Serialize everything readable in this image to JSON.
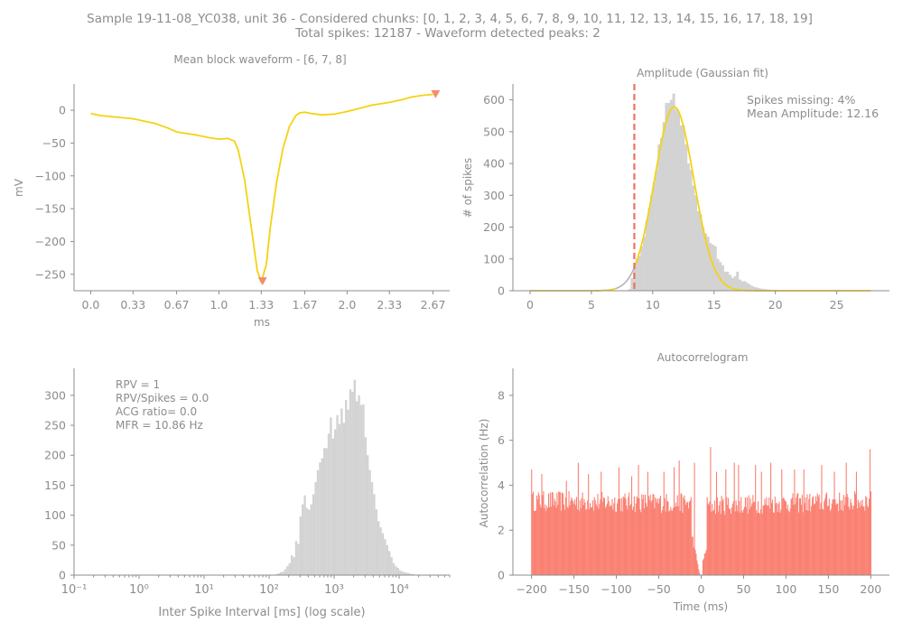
{
  "header": {
    "line1": "Sample 19-11-08_YC038, unit 36 - Considered chunks: [0, 1, 2, 3, 4, 5, 6, 7, 8, 9, 10, 11, 12, 13, 14, 15, 16, 17, 18, 19]",
    "line2": "Total spikes: 12187 - Waveform detected peaks: 2"
  },
  "colors": {
    "text": "#8c8c8c",
    "axis": "#8c8c8c",
    "waveform": "#f5d214",
    "peak_marker": "#f28e6b",
    "histogram": "#d3d3d3",
    "gauss_fit": "#f5d214",
    "gauss_tail": "#b4b4b4",
    "threshold": "#f07060",
    "acg": "#fa8072"
  },
  "chart_data": [
    {
      "id": "waveform",
      "type": "line",
      "title": "Mean block waveform - [6, 7, 8]",
      "xlabel": "ms",
      "ylabel": "mV",
      "xlim": [
        -0.13,
        2.8
      ],
      "ylim": [
        -275,
        40
      ],
      "xticks": [
        0.0,
        0.33,
        0.67,
        1.0,
        1.33,
        1.67,
        2.0,
        2.33,
        2.67
      ],
      "xtick_labels": [
        "0.0",
        "0.33",
        "0.67",
        "1.0",
        "1.33",
        "1.67",
        "2.0",
        "2.33",
        "2.67"
      ],
      "yticks": [
        0,
        -50,
        -100,
        -150,
        -200,
        -250
      ],
      "ytick_labels": [
        "0",
        "−50",
        "−100",
        "−150",
        "−200",
        "−250"
      ],
      "x": [
        0.0,
        0.07,
        0.17,
        0.33,
        0.5,
        0.6,
        0.67,
        0.83,
        0.93,
        1.0,
        1.07,
        1.12,
        1.15,
        1.2,
        1.25,
        1.3,
        1.33,
        1.37,
        1.4,
        1.45,
        1.5,
        1.55,
        1.6,
        1.63,
        1.67,
        1.72,
        1.8,
        1.9,
        2.0,
        2.1,
        2.2,
        2.33,
        2.43,
        2.5,
        2.6,
        2.67
      ],
      "y": [
        -5,
        -8,
        -10,
        -13,
        -20,
        -27,
        -33,
        -38,
        -42,
        -44,
        -43,
        -47,
        -60,
        -105,
        -175,
        -245,
        -262,
        -235,
        -180,
        -110,
        -58,
        -25,
        -8,
        -4,
        -3,
        -5,
        -7,
        -6,
        -2,
        3,
        8,
        12,
        16,
        20,
        23,
        24
      ],
      "peaks": [
        {
          "x": 1.34,
          "y": -260
        },
        {
          "x": 2.69,
          "y": 25
        }
      ]
    },
    {
      "id": "amplitude",
      "type": "bar",
      "title": "Amplitude (Gaussian fit)",
      "ylabel": "# of spikes",
      "xlim": [
        -1.4,
        29.3
      ],
      "ylim": [
        0,
        650
      ],
      "xticks": [
        0,
        5,
        10,
        15,
        20,
        25
      ],
      "yticks": [
        0,
        100,
        200,
        300,
        400,
        500,
        600
      ],
      "bin_width": 0.22,
      "bins": [
        [
          8.0,
          5
        ],
        [
          8.2,
          40
        ],
        [
          8.4,
          80
        ],
        [
          8.6,
          100
        ],
        [
          8.8,
          110
        ],
        [
          9.0,
          140
        ],
        [
          9.2,
          170
        ],
        [
          9.4,
          220
        ],
        [
          9.6,
          260
        ],
        [
          9.8,
          300
        ],
        [
          10.0,
          340
        ],
        [
          10.2,
          380
        ],
        [
          10.4,
          460
        ],
        [
          10.6,
          480
        ],
        [
          10.8,
          530
        ],
        [
          11.0,
          590
        ],
        [
          11.2,
          590
        ],
        [
          11.4,
          600
        ],
        [
          11.6,
          620
        ],
        [
          11.8,
          570
        ],
        [
          12.0,
          560
        ],
        [
          12.2,
          520
        ],
        [
          12.4,
          520
        ],
        [
          12.6,
          460
        ],
        [
          12.8,
          400
        ],
        [
          13.0,
          380
        ],
        [
          13.2,
          330
        ],
        [
          13.4,
          300
        ],
        [
          13.6,
          250
        ],
        [
          13.8,
          240
        ],
        [
          14.0,
          200
        ],
        [
          14.2,
          180
        ],
        [
          14.4,
          170
        ],
        [
          14.6,
          150
        ],
        [
          14.8,
          145
        ],
        [
          15.0,
          140
        ],
        [
          15.2,
          100
        ],
        [
          15.4,
          90
        ],
        [
          15.6,
          80
        ],
        [
          15.8,
          60
        ],
        [
          16.0,
          60
        ],
        [
          16.2,
          50
        ],
        [
          16.4,
          40
        ],
        [
          16.6,
          45
        ],
        [
          16.8,
          60
        ],
        [
          17.0,
          35
        ],
        [
          17.2,
          30
        ],
        [
          17.4,
          30
        ],
        [
          17.6,
          25
        ],
        [
          17.8,
          20
        ],
        [
          18.0,
          15
        ],
        [
          18.2,
          12
        ],
        [
          18.4,
          10
        ],
        [
          18.6,
          8
        ],
        [
          18.8,
          6
        ],
        [
          19.0,
          5
        ],
        [
          19.2,
          4
        ],
        [
          19.4,
          3
        ],
        [
          19.6,
          2
        ],
        [
          19.8,
          2
        ],
        [
          20.0,
          1
        ],
        [
          20.4,
          1
        ]
      ],
      "gaussian": {
        "mean": 11.75,
        "sigma": 1.6,
        "peak": 578,
        "x_range": [
          0.0,
          27.8
        ],
        "solid_from": 8.5
      },
      "threshold_x": 8.5,
      "annotations": [
        "Spikes missing: 4%",
        "Mean Amplitude: 12.16"
      ]
    },
    {
      "id": "isi",
      "type": "bar",
      "xlabel": "Inter Spike Interval [ms] (log scale)",
      "xscale": "log",
      "xlim": [
        0.1,
        60000
      ],
      "ylim": [
        0,
        345
      ],
      "xticks": [
        0.1,
        1,
        10,
        100,
        1000,
        10000
      ],
      "xtick_labels": [
        "10⁻¹",
        "10⁰",
        "10¹",
        "10²",
        "10³",
        "10⁴"
      ],
      "yticks": [
        0,
        50,
        100,
        150,
        200,
        250,
        300
      ],
      "log_bin_width": 0.0333,
      "bins": [
        [
          2.1,
          2
        ],
        [
          2.133,
          3
        ],
        [
          2.167,
          5
        ],
        [
          2.2,
          6
        ],
        [
          2.233,
          10
        ],
        [
          2.267,
          15
        ],
        [
          2.3,
          20
        ],
        [
          2.333,
          33
        ],
        [
          2.367,
          30
        ],
        [
          2.4,
          57
        ],
        [
          2.433,
          52
        ],
        [
          2.467,
          98
        ],
        [
          2.5,
          118
        ],
        [
          2.533,
          133
        ],
        [
          2.567,
          112
        ],
        [
          2.6,
          109
        ],
        [
          2.633,
          118
        ],
        [
          2.667,
          135
        ],
        [
          2.7,
          155
        ],
        [
          2.733,
          175
        ],
        [
          2.767,
          188
        ],
        [
          2.8,
          195
        ],
        [
          2.833,
          212
        ],
        [
          2.867,
          212
        ],
        [
          2.9,
          236
        ],
        [
          2.933,
          263
        ],
        [
          2.967,
          228
        ],
        [
          3.0,
          243
        ],
        [
          3.033,
          267
        ],
        [
          3.067,
          252
        ],
        [
          3.1,
          278
        ],
        [
          3.133,
          254
        ],
        [
          3.167,
          292
        ],
        [
          3.2,
          276
        ],
        [
          3.233,
          310
        ],
        [
          3.267,
          306
        ],
        [
          3.3,
          326
        ],
        [
          3.333,
          290
        ],
        [
          3.367,
          300
        ],
        [
          3.4,
          284
        ],
        [
          3.433,
          285
        ],
        [
          3.467,
          230
        ],
        [
          3.5,
          200
        ],
        [
          3.533,
          175
        ],
        [
          3.567,
          155
        ],
        [
          3.6,
          135
        ],
        [
          3.633,
          110
        ],
        [
          3.667,
          90
        ],
        [
          3.7,
          80
        ],
        [
          3.733,
          70
        ],
        [
          3.767,
          60
        ],
        [
          3.8,
          50
        ],
        [
          3.833,
          40
        ],
        [
          3.867,
          30
        ],
        [
          3.9,
          20
        ],
        [
          3.933,
          15
        ],
        [
          3.967,
          12
        ],
        [
          4.0,
          8
        ],
        [
          4.033,
          6
        ],
        [
          4.067,
          5
        ],
        [
          4.1,
          4
        ],
        [
          4.133,
          3
        ],
        [
          4.167,
          2
        ],
        [
          4.2,
          2
        ]
      ],
      "annotations": [
        "RPV = 1",
        "RPV/Spikes = 0.0",
        "ACG ratio= 0.0",
        "MFR = 10.86 Hz"
      ]
    },
    {
      "id": "acg",
      "type": "bar",
      "title": "Autocorrelogram",
      "xlabel": "Time (ms)",
      "ylabel": "Autocorrelation (Hz)",
      "xlim": [
        -222,
        222
      ],
      "ylim": [
        0,
        9.2
      ],
      "xticks": [
        -200,
        -150,
        -100,
        -50,
        0,
        50,
        100,
        150,
        200
      ],
      "xtick_labels": [
        "−200",
        "−150",
        "−100",
        "−50",
        "0",
        "50",
        "100",
        "150",
        "200"
      ],
      "yticks": [
        0,
        2,
        4,
        6,
        8
      ],
      "bin_ms": 1,
      "segments": [
        {
          "x": [
            -200,
            -12
          ],
          "y": [
            3.3,
            3.2
          ]
        },
        {
          "x": [
            -11,
            -2
          ],
          "y": [
            1.8,
            0.1
          ]
        },
        {
          "x": [
            -1,
            1
          ],
          "y": [
            0.0,
            0.0
          ]
        },
        {
          "x": [
            2,
            6
          ],
          "y": [
            0.6,
            1.2
          ]
        },
        {
          "x": [
            7,
            200
          ],
          "y": [
            3.1,
            3.3
          ]
        }
      ],
      "noise": 0.45,
      "tall": [
        [
          -200,
          4.7
        ],
        [
          -188,
          4.5
        ],
        [
          -159,
          4.2
        ],
        [
          -145,
          5.0
        ],
        [
          -133,
          4.5
        ],
        [
          -118,
          4.6
        ],
        [
          -97,
          4.8
        ],
        [
          -82,
          4.4
        ],
        [
          -74,
          4.9
        ],
        [
          -63,
          4.6
        ],
        [
          -44,
          4.6
        ],
        [
          -32,
          4.8
        ],
        [
          -26,
          5.1
        ],
        [
          -8,
          5.0
        ],
        [
          11,
          5.7
        ],
        [
          18,
          4.6
        ],
        [
          29,
          4.7
        ],
        [
          39,
          5.0
        ],
        [
          44,
          4.9
        ],
        [
          64,
          4.9
        ],
        [
          71,
          4.6
        ],
        [
          82,
          5.0
        ],
        [
          95,
          4.7
        ],
        [
          110,
          4.7
        ],
        [
          121,
          4.7
        ],
        [
          142,
          4.9
        ],
        [
          157,
          4.6
        ],
        [
          171,
          5.0
        ],
        [
          183,
          4.6
        ],
        [
          199,
          5.6
        ]
      ]
    }
  ]
}
